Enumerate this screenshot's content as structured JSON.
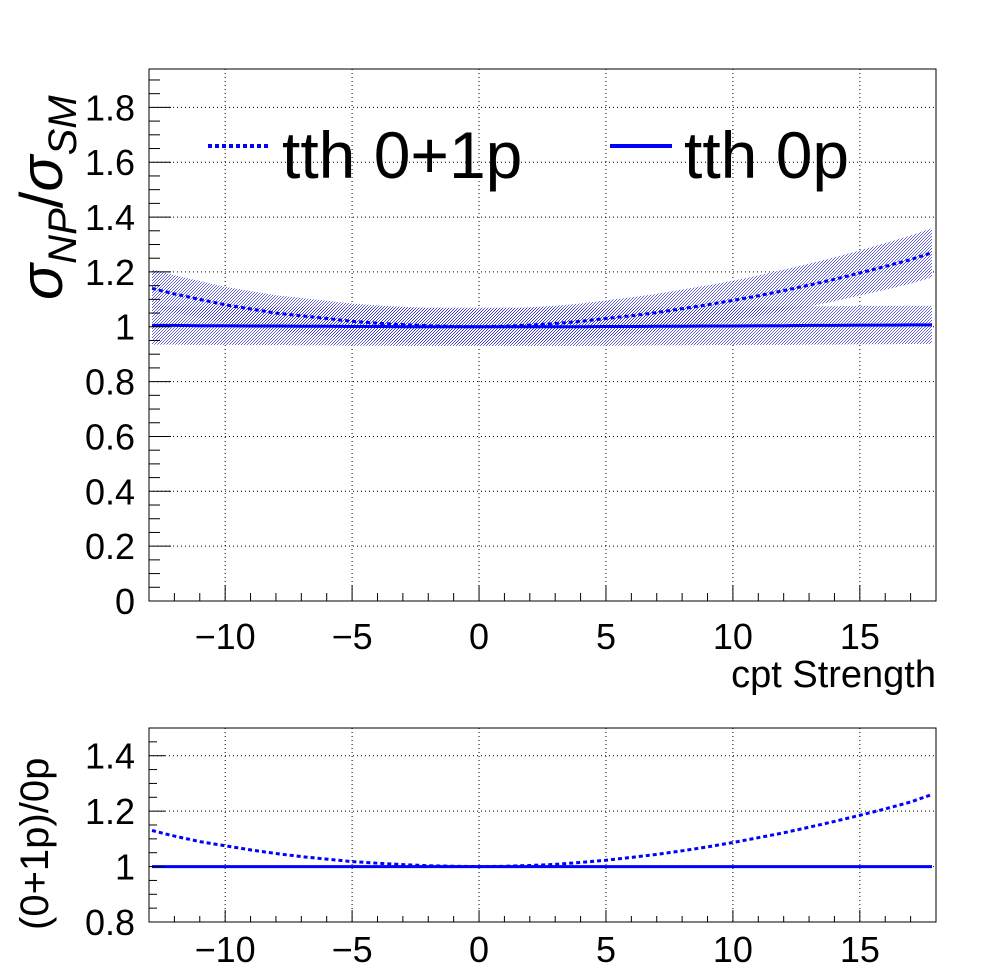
{
  "chart_data": [
    {
      "type": "line",
      "ylabel": "σNP/σSM",
      "ylabel_parts": {
        "sym": "σ",
        "sub1": "NP",
        "slash": "/",
        "sub2": "SM"
      },
      "xlabel": "cpt Strength",
      "xlim": [
        -13,
        18
      ],
      "ylim": [
        0,
        1.94
      ],
      "xticks": [
        -10,
        -5,
        0,
        5,
        10,
        15
      ],
      "xtick_labels": [
        "−10",
        "−5",
        "0",
        "5",
        "10",
        "15"
      ],
      "yticks": [
        0,
        0.2,
        0.4,
        0.6,
        0.8,
        1,
        1.2,
        1.4,
        1.6,
        1.8
      ],
      "ytick_labels": [
        "0",
        "0.2",
        "0.4",
        "0.6",
        "0.8",
        "1",
        "1.2",
        "1.4",
        "1.6",
        "1.8"
      ],
      "grid": true,
      "legend_position": "top",
      "x": [
        -13,
        -12,
        -11,
        -10,
        -9,
        -8,
        -7,
        -6,
        -5,
        -4,
        -3,
        -2,
        -1,
        0,
        1,
        2,
        3,
        4,
        5,
        6,
        7,
        8,
        9,
        10,
        11,
        12,
        13,
        14,
        15,
        16,
        17,
        18
      ],
      "series": [
        {
          "name": "tth 0+1p",
          "style": "dashed",
          "color": "#0000ff",
          "values": [
            1.14,
            1.12,
            1.1,
            1.08,
            1.065,
            1.05,
            1.04,
            1.03,
            1.02,
            1.013,
            1.008,
            1.004,
            1.001,
            1.0,
            1.002,
            1.006,
            1.012,
            1.02,
            1.03,
            1.04,
            1.052,
            1.066,
            1.08,
            1.096,
            1.113,
            1.132,
            1.152,
            1.173,
            1.196,
            1.22,
            1.245,
            1.27
          ],
          "band_halfwidth": [
            0.07,
            0.068,
            0.067,
            0.066,
            0.065,
            0.065,
            0.065,
            0.065,
            0.065,
            0.065,
            0.065,
            0.065,
            0.065,
            0.065,
            0.065,
            0.065,
            0.065,
            0.065,
            0.066,
            0.067,
            0.068,
            0.07,
            0.071,
            0.072,
            0.074,
            0.076,
            0.078,
            0.08,
            0.082,
            0.085,
            0.088,
            0.09
          ]
        },
        {
          "name": "tth 0p",
          "style": "solid",
          "color": "#0000ff",
          "values": [
            1.005,
            1.005,
            1.004,
            1.004,
            1.003,
            1.003,
            1.002,
            1.002,
            1.001,
            1.001,
            1.0,
            1.0,
            1.0,
            1.0,
            1.0,
            1.0,
            1.0,
            1.0,
            1.001,
            1.001,
            1.002,
            1.002,
            1.003,
            1.003,
            1.004,
            1.004,
            1.005,
            1.005,
            1.006,
            1.006,
            1.007,
            1.007
          ],
          "band_halfwidth": [
            0.07,
            0.07,
            0.07,
            0.07,
            0.07,
            0.07,
            0.07,
            0.07,
            0.07,
            0.07,
            0.07,
            0.07,
            0.07,
            0.07,
            0.07,
            0.07,
            0.07,
            0.07,
            0.07,
            0.07,
            0.07,
            0.07,
            0.07,
            0.07,
            0.07,
            0.07,
            0.07,
            0.07,
            0.07,
            0.07,
            0.07,
            0.07
          ]
        }
      ]
    },
    {
      "type": "line",
      "ylabel": "(0+1p)/0p",
      "xlabel": "",
      "xlim": [
        -13,
        18
      ],
      "ylim": [
        0.8,
        1.5
      ],
      "xticks": [
        -10,
        -5,
        0,
        5,
        10,
        15
      ],
      "xtick_labels": [
        "−10",
        "−5",
        "0",
        "5",
        "10",
        "15"
      ],
      "yticks": [
        0.8,
        1,
        1.2,
        1.4
      ],
      "ytick_labels": [
        "0.8",
        "1",
        "1.2",
        "1.4"
      ],
      "grid": true,
      "x": [
        -13,
        -12,
        -11,
        -10,
        -9,
        -8,
        -7,
        -6,
        -5,
        -4,
        -3,
        -2,
        -1,
        0,
        1,
        2,
        3,
        4,
        5,
        6,
        7,
        8,
        9,
        10,
        11,
        12,
        13,
        14,
        15,
        16,
        17,
        18
      ],
      "series": [
        {
          "style": "dashed",
          "color": "#0000ff",
          "values": [
            1.13,
            1.11,
            1.09,
            1.075,
            1.06,
            1.047,
            1.036,
            1.027,
            1.018,
            1.012,
            1.007,
            1.003,
            1.001,
            1.0,
            1.001,
            1.004,
            1.008,
            1.015,
            1.023,
            1.033,
            1.044,
            1.057,
            1.071,
            1.087,
            1.104,
            1.122,
            1.142,
            1.163,
            1.185,
            1.208,
            1.233,
            1.26
          ]
        },
        {
          "style": "solid",
          "color": "#0000ff",
          "values": [
            1.0,
            1.0,
            1.0,
            1.0,
            1.0,
            1.0,
            1.0,
            1.0,
            1.0,
            1.0,
            1.0,
            1.0,
            1.0,
            1.0,
            1.0,
            1.0,
            1.0,
            1.0,
            1.0,
            1.0,
            1.0,
            1.0,
            1.0,
            1.0,
            1.0,
            1.0,
            1.0,
            1.0,
            1.0,
            1.0,
            1.0,
            1.0
          ]
        }
      ]
    }
  ]
}
